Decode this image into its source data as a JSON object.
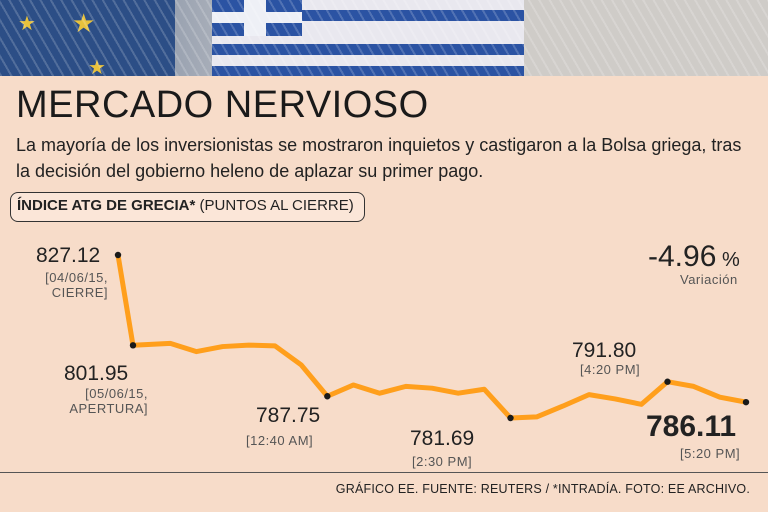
{
  "title": "MERCADO NERVIOSO",
  "subtitle": "La mayoría de los inversionistas se mostraron inquietos y castigaron a la Bolsa griega, tras la decisión del gobierno heleno de aplazar su primer pago.",
  "chart_label": {
    "title": "Índice ATG de Grecia*",
    "unit": "(puntos al cierre)"
  },
  "change": {
    "value": "-4.96",
    "symbol": "%",
    "label": "Variación"
  },
  "footer": "GRÁFICO EE. FUENTE: REUTERS / *INTRADÍA. FOTO: EE ARCHIVO.",
  "colors": {
    "background": "#f7dcc9",
    "line": "#ff9f1c",
    "marker": "#1a1a1a"
  },
  "photo": {
    "description_icons": [
      "eu-flag-icon",
      "greek-flag-icon"
    ]
  },
  "chart_data": {
    "type": "line",
    "title": "Índice ATG de Grecia*",
    "ylabel": "puntos al cierre",
    "ylim": [
      776,
      830
    ],
    "grid": false,
    "x": [
      "04/06/15, cierre",
      "05/06/15, apertura",
      "",
      "",
      "",
      "",
      "",
      "",
      "12:40 AM",
      "",
      "",
      "",
      "",
      "",
      "",
      "2:30 PM",
      "",
      "",
      "",
      "",
      "",
      "4:20 PM",
      "",
      "",
      "5:20 PM"
    ],
    "series": [
      {
        "values": [
          827.12,
          801.95,
          802.5,
          800.2,
          801.6,
          802.0,
          801.8,
          796.5,
          787.75,
          790.9,
          788.6,
          790.5,
          790.0,
          788.6,
          789.7,
          781.69,
          782.0,
          785.0,
          788.2,
          787.0,
          785.5,
          791.8,
          790.5,
          787.5,
          786.11
        ]
      }
    ],
    "annotations": [
      {
        "index": 0,
        "value": "827.12",
        "note": [
          "[04/06/15,",
          "CIERRE]"
        ]
      },
      {
        "index": 1,
        "value": "801.95",
        "note": [
          "[05/06/15,",
          "APERTURA]"
        ]
      },
      {
        "index": 8,
        "value": "787.75",
        "note": [
          "[12:40 AM]"
        ]
      },
      {
        "index": 15,
        "value": "781.69",
        "note": [
          "[2:30 PM]"
        ]
      },
      {
        "index": 21,
        "value": "791.80",
        "note": [
          "[4:20 PM]"
        ]
      },
      {
        "index": 24,
        "value": "786.11",
        "note": [
          "[5:20 PM]"
        ],
        "emphasis": true
      }
    ]
  }
}
